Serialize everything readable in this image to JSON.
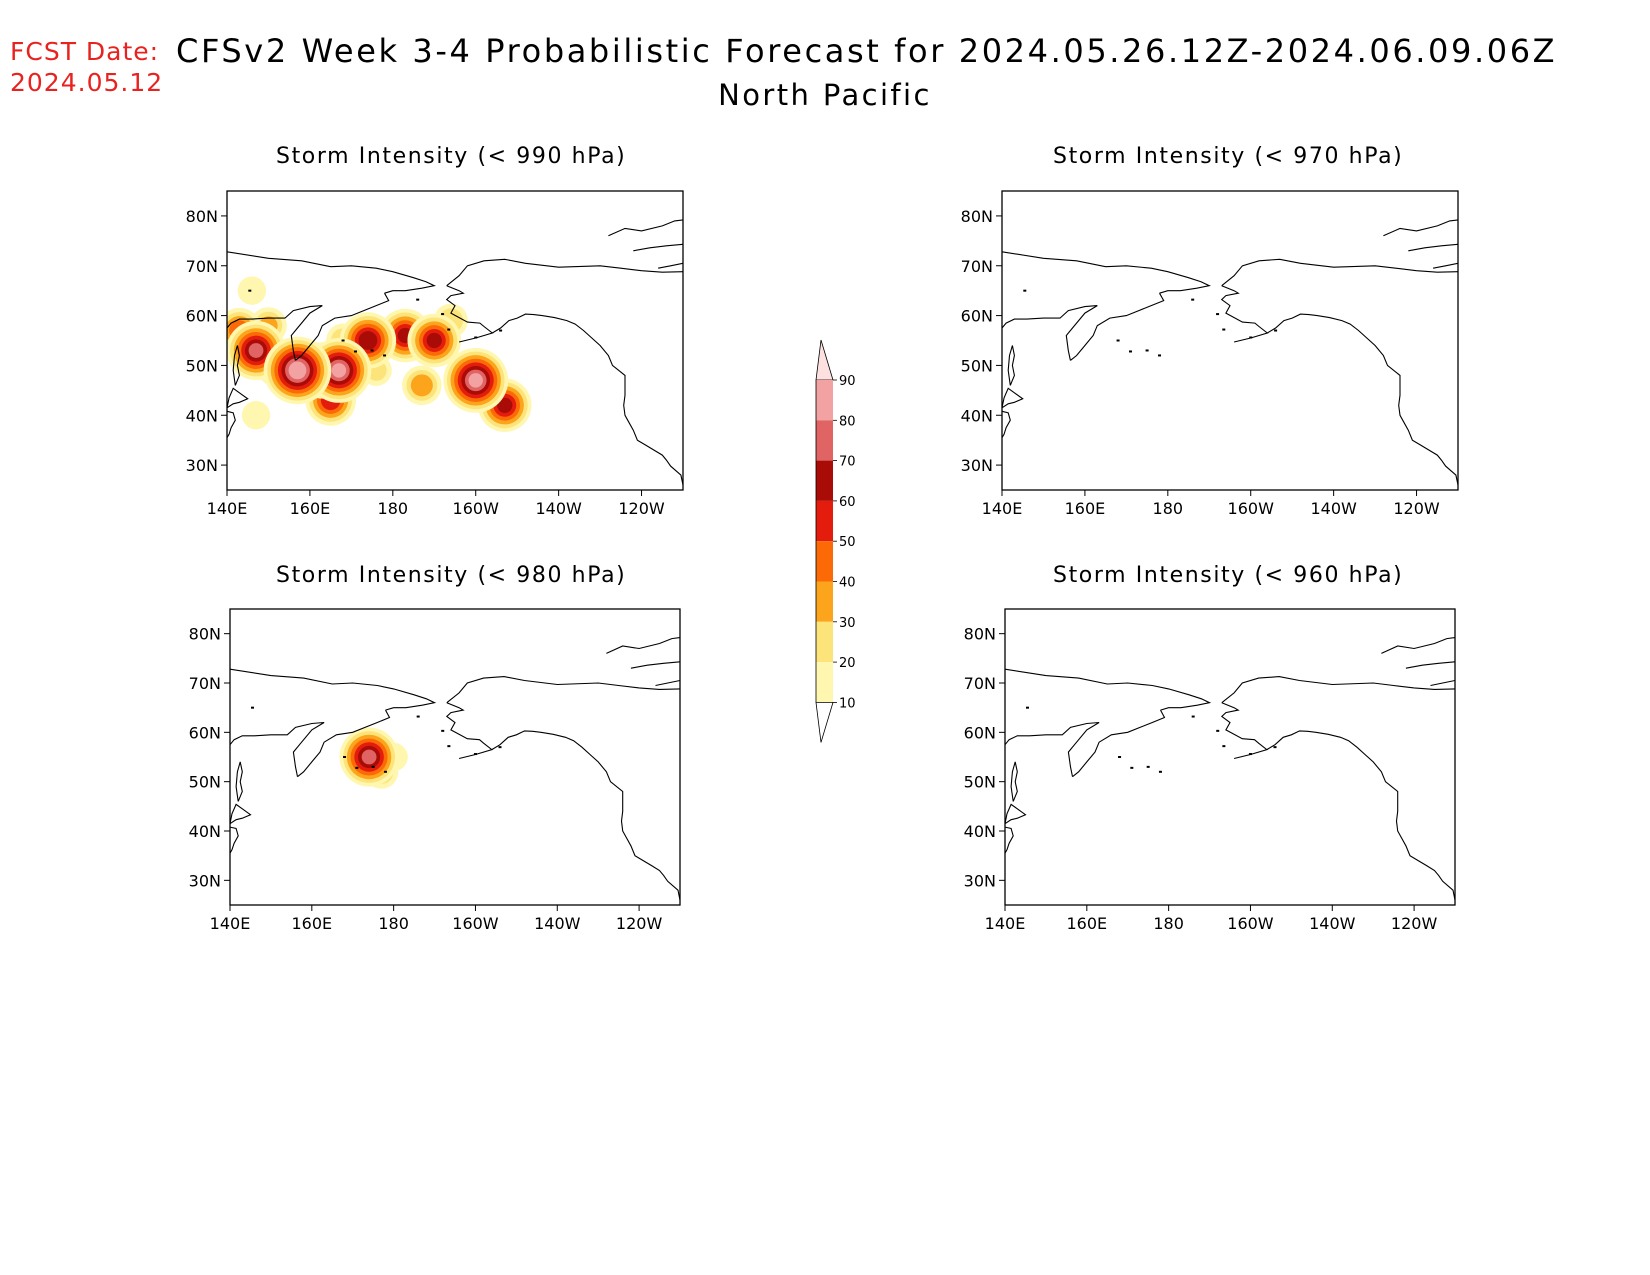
{
  "header": {
    "fcst_label": "FCST Date:",
    "fcst_date": "2024.05.12",
    "title": "CFSv2 Week 3-4 Probabilistic Forecast for 2024.05.26.12Z-2024.06.09.06Z",
    "region": "North Pacific"
  },
  "axes": {
    "x_ticks": [
      "140E",
      "160E",
      "180",
      "160W",
      "140W",
      "120W"
    ],
    "y_ticks": [
      "80N",
      "70N",
      "60N",
      "50N",
      "40N",
      "30N"
    ],
    "lon_range_east": [
      140,
      250
    ],
    "lat_range": [
      25,
      85
    ]
  },
  "panels": [
    {
      "id": "p990",
      "title": "Storm Intensity (< 990 hPa)"
    },
    {
      "id": "p970",
      "title": "Storm Intensity (< 970 hPa)"
    },
    {
      "id": "p980",
      "title": "Storm Intensity (< 980 hPa)"
    },
    {
      "id": "p960",
      "title": "Storm Intensity (< 960 hPa)"
    }
  ],
  "colorbar": {
    "levels": [
      "10",
      "20",
      "30",
      "40",
      "50",
      "60",
      "70",
      "80",
      "90"
    ],
    "colors": [
      "#fff7b0",
      "#fde47a",
      "#fca41c",
      "#fb6a07",
      "#e41c0d",
      "#a90c06",
      "#e06464",
      "#f2a2a2",
      "#fde0e0"
    ]
  },
  "chart_data": [
    {
      "type": "heatmap",
      "title": "Storm Intensity (< 990 hPa)",
      "units": "%",
      "cells": [
        {
          "lon": 143,
          "lat": 57,
          "value": 45
        },
        {
          "lon": 147,
          "lat": 53,
          "value": 70
        },
        {
          "lon": 150,
          "lat": 58,
          "value": 30
        },
        {
          "lon": 152,
          "lat": 50,
          "value": 40
        },
        {
          "lon": 157,
          "lat": 49,
          "value": 85
        },
        {
          "lon": 163,
          "lat": 49,
          "value": 65
        },
        {
          "lon": 167,
          "lat": 49,
          "value": 80
        },
        {
          "lon": 165,
          "lat": 43,
          "value": 55
        },
        {
          "lon": 168,
          "lat": 55,
          "value": 25
        },
        {
          "lon": 174,
          "lat": 55,
          "value": 65
        },
        {
          "lon": 176,
          "lat": 49,
          "value": 20
        },
        {
          "lon": 183,
          "lat": 56,
          "value": 60
        },
        {
          "lon": 190,
          "lat": 55,
          "value": 60
        },
        {
          "lon": 194,
          "lat": 59,
          "value": 25
        },
        {
          "lon": 187,
          "lat": 46,
          "value": 35
        },
        {
          "lon": 200,
          "lat": 47,
          "value": 80
        },
        {
          "lon": 207,
          "lat": 42,
          "value": 60
        },
        {
          "lon": 147,
          "lat": 40,
          "value": 15
        },
        {
          "lon": 146,
          "lat": 65,
          "value": 15
        }
      ]
    },
    {
      "type": "heatmap",
      "title": "Storm Intensity (< 970 hPa)",
      "cells": []
    },
    {
      "type": "heatmap",
      "title": "Storm Intensity (< 980 hPa)",
      "units": "%",
      "cells": [
        {
          "lon": 174,
          "lat": 55,
          "value": 70
        },
        {
          "lon": 180,
          "lat": 55,
          "value": 15
        },
        {
          "lon": 177,
          "lat": 52,
          "value": 25
        }
      ]
    },
    {
      "type": "heatmap",
      "title": "Storm Intensity (< 960 hPa)",
      "cells": []
    }
  ]
}
